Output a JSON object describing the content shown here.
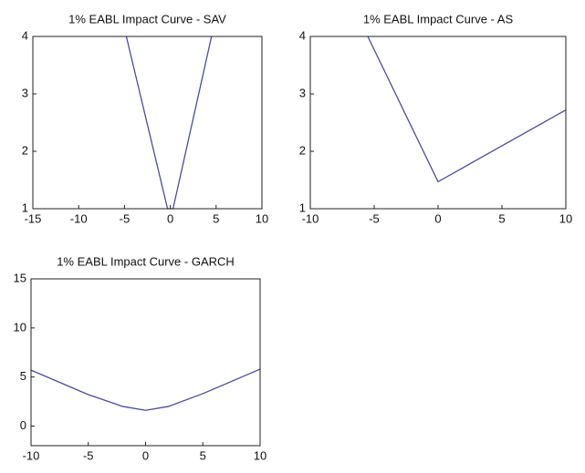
{
  "chart_data": [
    {
      "type": "line",
      "title": "1% EABL Impact Curve - SAV",
      "x": [
        -4.8,
        -0.3,
        0.3,
        4.5
      ],
      "series": [
        {
          "color": "#4a4aa8",
          "values": [
            4,
            1,
            1,
            4
          ]
        }
      ],
      "xlim": [
        -15,
        10
      ],
      "xticks": [
        -15,
        -10,
        -5,
        0,
        5,
        10
      ],
      "ylim": [
        1,
        4
      ],
      "yticks": [
        1,
        2,
        3,
        4
      ]
    },
    {
      "type": "line",
      "title": "1% EABL Impact Curve - AS",
      "x": [
        -5.5,
        0,
        10
      ],
      "series": [
        {
          "color": "#4a4aa8",
          "values": [
            4,
            1.47,
            2.72
          ]
        }
      ],
      "xlim": [
        -10,
        10
      ],
      "xticks": [
        -10,
        -5,
        0,
        5,
        10
      ],
      "ylim": [
        1,
        4
      ],
      "yticks": [
        1,
        2,
        3,
        4
      ]
    },
    {
      "type": "line",
      "title": "1% EABL Impact Curve - GARCH",
      "x": [
        -10,
        -5,
        -2,
        0,
        2,
        5,
        10
      ],
      "series": [
        {
          "color": "#4a4aa8",
          "values": [
            5.7,
            3.2,
            2.0,
            1.6,
            2.0,
            3.3,
            5.8
          ]
        }
      ],
      "xlim": [
        -10,
        10
      ],
      "xticks": [
        -10,
        -5,
        0,
        5,
        10
      ],
      "ylim": [
        -2,
        15
      ],
      "yticks": [
        0,
        5,
        10,
        15
      ]
    }
  ]
}
